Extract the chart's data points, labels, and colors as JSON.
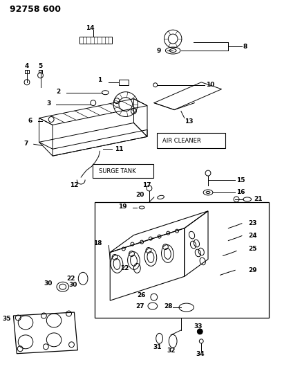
{
  "title": "92758 600",
  "bg_color": "#ffffff",
  "fig_width": 4.08,
  "fig_height": 5.33,
  "dpi": 100,
  "lw": 0.7
}
